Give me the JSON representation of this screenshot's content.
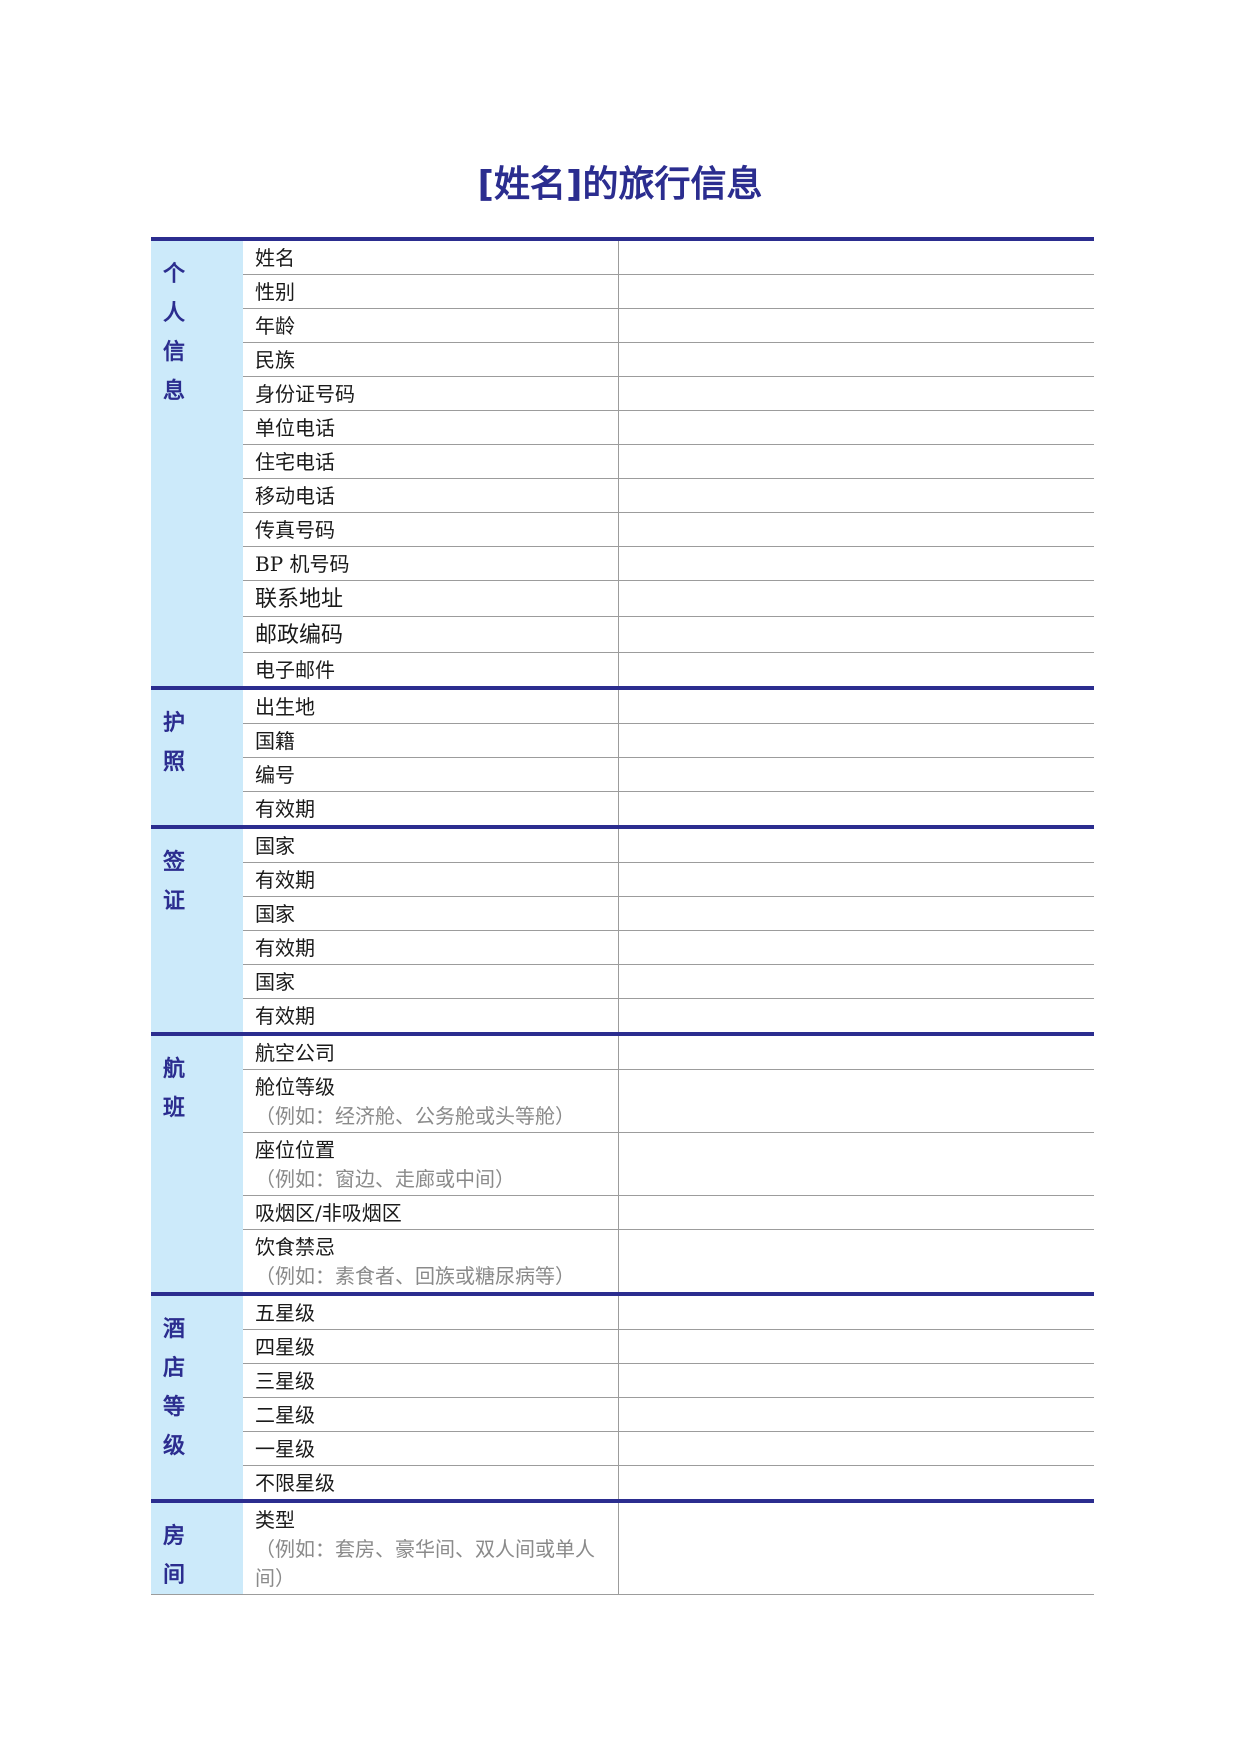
{
  "title": "[姓名]的旅行信息",
  "sections": [
    {
      "id": "personal",
      "label": "个人信息",
      "fields": [
        "姓名",
        "性别",
        "年龄",
        "民族",
        "身份证号码",
        "单位电话",
        "住宅电话",
        "移动电话",
        "传真号码",
        "BP 机号码",
        "联系地址",
        "邮政编码",
        "电子邮件"
      ]
    },
    {
      "id": "passport",
      "label": "护照",
      "fields": [
        "出生地",
        "国籍",
        "编号",
        "有效期"
      ]
    },
    {
      "id": "visa",
      "label": "签证",
      "fields": [
        "国家",
        "有效期",
        "国家",
        "有效期",
        "国家",
        "有效期"
      ]
    },
    {
      "id": "flight",
      "label": "航班",
      "fields": [
        "航空公司",
        "舱位等级",
        "座位位置",
        "吸烟区/非吸烟区",
        "饮食禁忌"
      ],
      "hints": {
        "cabin": "（例如：经济舱、公务舱或头等舱）",
        "seat": "（例如：窗边、走廊或中间）",
        "diet": "（例如：素食者、回族或糖尿病等）"
      }
    },
    {
      "id": "hotel",
      "label": "酒店等级",
      "fields": [
        "五星级",
        "四星级",
        "三星级",
        "二星级",
        "一星级",
        "不限星级"
      ]
    },
    {
      "id": "room",
      "label": "房间",
      "fields": [
        "类型"
      ],
      "hints": {
        "type": "（例如：套房、豪华间、双人间或单人间）"
      }
    }
  ],
  "colors": {
    "accent": "#2b2d8f",
    "label_bg": "#cceafa",
    "rule": "#9c9c9c",
    "hint": "#8a8a8a"
  }
}
